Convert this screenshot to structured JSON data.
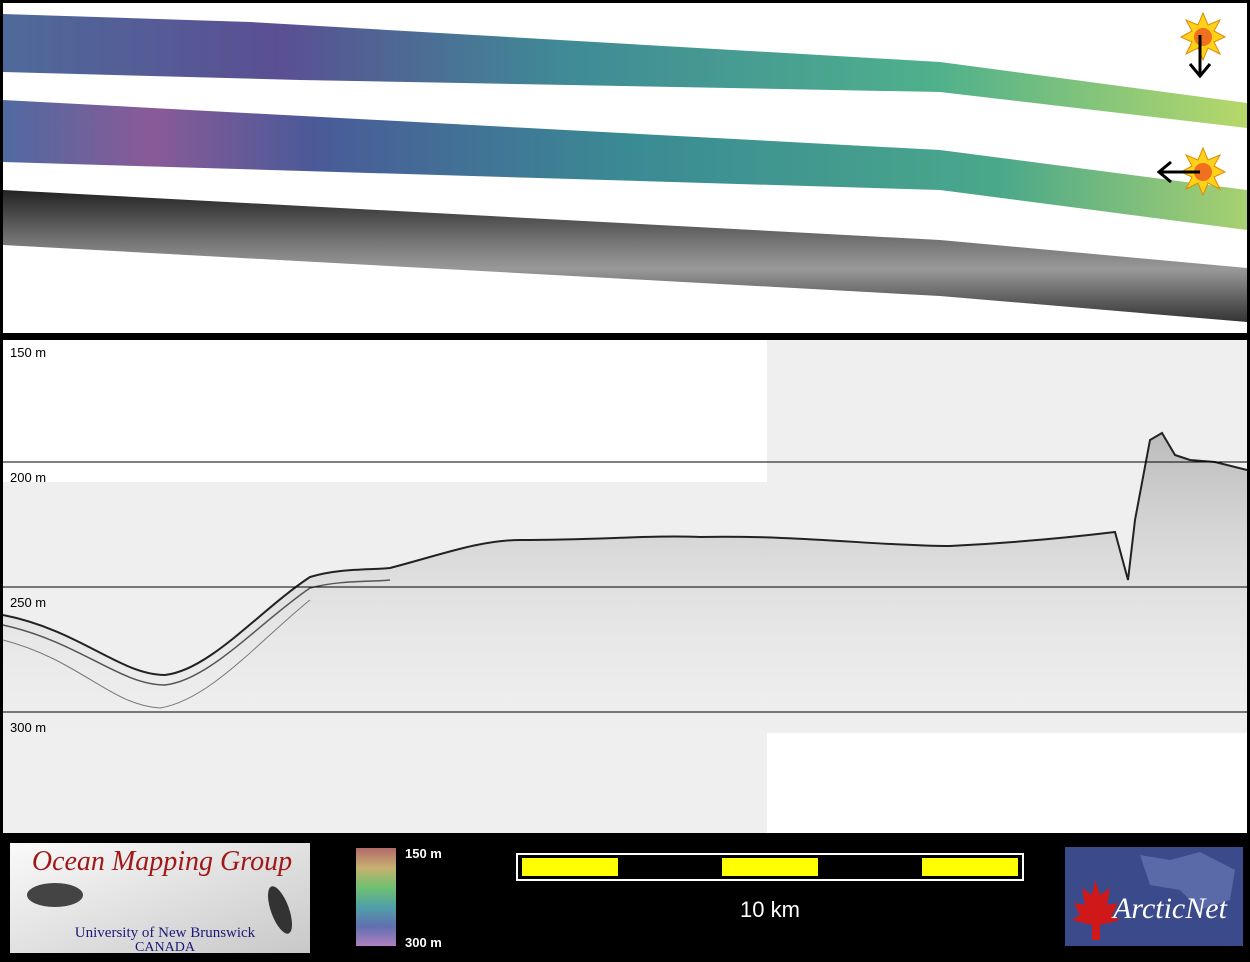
{
  "profile": {
    "depth_labels": [
      "150 m",
      "200 m",
      "250 m",
      "300 m"
    ]
  },
  "legend": {
    "color_scale": {
      "top": "150 m",
      "bottom": "300 m"
    },
    "scale_bar": "10 km"
  },
  "logos": {
    "omg": {
      "title": "Ocean Mapping Group",
      "line1": "University of New Brunswick",
      "line2": "CANADA"
    },
    "arcticnet": "ArcticNet"
  }
}
